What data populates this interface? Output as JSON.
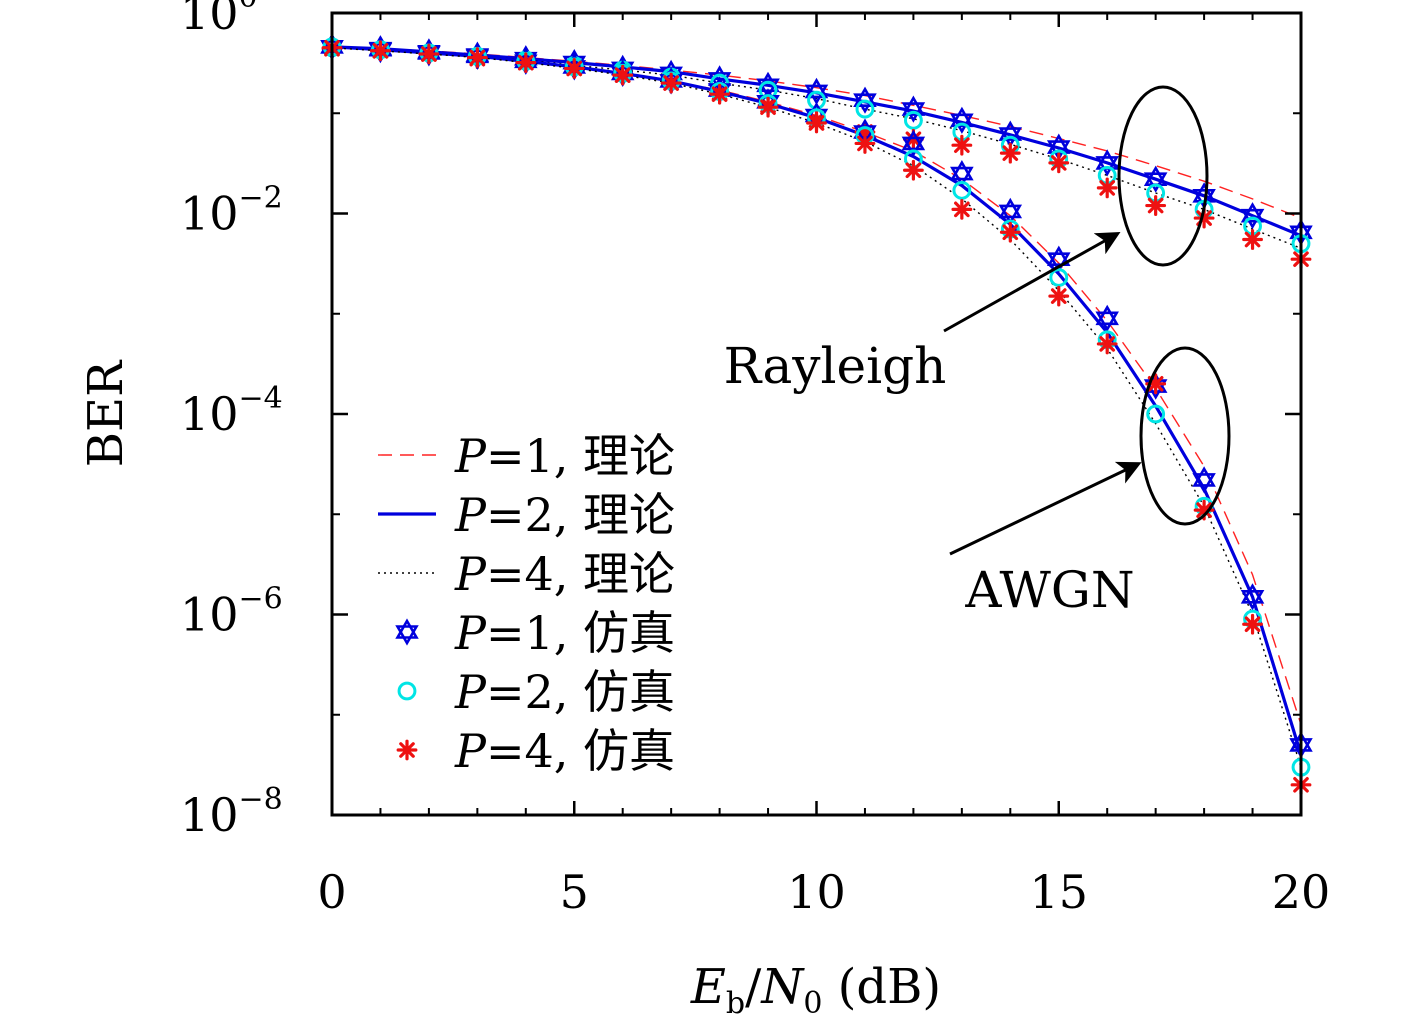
{
  "chart_data": {
    "type": "line",
    "xlabel": "E_b/N_0 (dB)",
    "ylabel": "BER",
    "xlim": [
      0,
      20
    ],
    "ylim_log10": [
      -8,
      0
    ],
    "yscale": "log",
    "grid": false,
    "legend_position": "lower-left",
    "xticks": [
      "0",
      "5",
      "10",
      "15",
      "20"
    ],
    "yticks": [
      {
        "base": "10",
        "exp": "0"
      },
      {
        "base": "10",
        "exp": "−2"
      },
      {
        "base": "10",
        "exp": "−4"
      },
      {
        "base": "10",
        "exp": "−6"
      },
      {
        "base": "10",
        "exp": "−8"
      }
    ],
    "x": [
      0,
      1,
      2,
      3,
      4,
      5,
      6,
      7,
      8,
      9,
      10,
      11,
      12,
      13,
      14,
      15,
      16,
      17,
      18,
      19,
      20
    ],
    "series": [
      {
        "name": "P=1, 理论",
        "label_italic": "P",
        "label_rest": "=1, 理论",
        "style": "dashed",
        "color": "#ff2222",
        "group": "Rayleigh",
        "y": [
          0.46,
          0.44,
          0.42,
          0.39,
          0.36,
          0.33,
          0.3,
          0.27,
          0.24,
          0.21,
          0.18,
          0.15,
          0.12,
          0.095,
          0.074,
          0.056,
          0.042,
          0.03,
          0.021,
          0.014,
          0.009
        ]
      },
      {
        "name": "P=2, 理论",
        "label_italic": "P",
        "label_rest": "=2, 理论",
        "style": "solid",
        "color": "#0000dd",
        "group": "Rayleigh",
        "y": [
          0.46,
          0.44,
          0.41,
          0.38,
          0.35,
          0.32,
          0.29,
          0.26,
          0.22,
          0.19,
          0.16,
          0.13,
          0.105,
          0.081,
          0.061,
          0.045,
          0.032,
          0.022,
          0.015,
          0.0095,
          0.006
        ]
      },
      {
        "name": "P=4, 理论",
        "label_italic": "P",
        "label_rest": "=4, 理论",
        "style": "dotted",
        "color": "#000000",
        "group": "Rayleigh",
        "y": [
          0.45,
          0.43,
          0.4,
          0.37,
          0.34,
          0.3,
          0.27,
          0.24,
          0.2,
          0.17,
          0.14,
          0.11,
          0.088,
          0.067,
          0.049,
          0.035,
          0.024,
          0.016,
          0.011,
          0.007,
          0.0045
        ]
      },
      {
        "name": "P=1, 理论",
        "style": "dashed",
        "color": "#ff2222",
        "group": "AWGN",
        "in_legend": false,
        "y": [
          0.46,
          0.43,
          0.4,
          0.37,
          0.33,
          0.29,
          0.25,
          0.21,
          0.17,
          0.13,
          0.095,
          0.065,
          0.042,
          0.022,
          0.0095,
          0.0032,
          0.00085,
          0.00018,
          3e-05,
          2.5e-06,
          8e-08
        ]
      },
      {
        "name": "P=2, 理论",
        "style": "solid",
        "color": "#0000dd",
        "group": "AWGN",
        "in_legend": false,
        "y": [
          0.46,
          0.43,
          0.4,
          0.37,
          0.33,
          0.29,
          0.25,
          0.21,
          0.165,
          0.125,
          0.09,
          0.06,
          0.037,
          0.019,
          0.0078,
          0.0025,
          0.00065,
          0.00012,
          1.8e-05,
          1.5e-06,
          4e-08
        ]
      },
      {
        "name": "P=4, 理论",
        "style": "dotted",
        "color": "#000000",
        "group": "AWGN",
        "in_legend": false,
        "y": [
          0.45,
          0.42,
          0.39,
          0.36,
          0.32,
          0.28,
          0.24,
          0.2,
          0.155,
          0.115,
          0.08,
          0.052,
          0.03,
          0.014,
          0.0055,
          0.0017,
          0.00045,
          8e-05,
          1.2e-05,
          1e-06,
          3e-08
        ]
      },
      {
        "name": "P=1, 仿真",
        "label_italic": "P",
        "label_rest": "=1, 仿真",
        "style": "marker",
        "marker": "star",
        "color": "#0000dd",
        "group": "Rayleigh",
        "y": [
          0.46,
          0.44,
          0.41,
          0.38,
          0.35,
          0.32,
          0.28,
          0.25,
          0.22,
          0.19,
          0.165,
          0.135,
          0.11,
          0.085,
          0.062,
          0.046,
          0.032,
          0.022,
          0.015,
          0.0095,
          0.0065
        ]
      },
      {
        "name": "P=2, 仿真",
        "label_italic": "P",
        "label_rest": "=2, 仿真",
        "style": "marker",
        "marker": "circle",
        "color": "#00e5e5",
        "group": "Rayleigh",
        "y": [
          0.45,
          0.43,
          0.4,
          0.37,
          0.34,
          0.3,
          0.27,
          0.23,
          0.2,
          0.17,
          0.135,
          0.11,
          0.085,
          0.065,
          0.048,
          0.035,
          0.024,
          0.016,
          0.011,
          0.0075,
          0.005
        ]
      },
      {
        "name": "P=4, 仿真",
        "label_italic": "P",
        "label_rest": "=4, 仿真",
        "style": "marker",
        "marker": "asterisk",
        "color": "#ee1111",
        "group": "Rayleigh",
        "y": [
          0.44,
          0.42,
          0.39,
          0.35,
          0.32,
          0.28,
          0.24,
          0.2,
          0.16,
          0.12,
          0.085,
          0.065,
          0.055,
          0.048,
          0.04,
          0.032,
          0.018,
          0.012,
          0.009,
          0.0055,
          0.0035
        ]
      },
      {
        "name": "P=1, 仿真",
        "style": "marker",
        "marker": "star",
        "color": "#0000dd",
        "group": "AWGN",
        "in_legend": false,
        "y": [
          0.46,
          0.43,
          0.4,
          0.37,
          0.33,
          0.29,
          0.25,
          0.21,
          0.17,
          0.13,
          0.095,
          0.065,
          0.05,
          0.025,
          0.0105,
          0.0035,
          0.0009,
          0.00019,
          2.2e-05,
          1.5e-06,
          5e-08
        ]
      },
      {
        "name": "P=2, 仿真",
        "style": "marker",
        "marker": "circle",
        "color": "#00e5e5",
        "group": "AWGN",
        "in_legend": false,
        "y": [
          0.46,
          0.43,
          0.4,
          0.37,
          0.33,
          0.29,
          0.25,
          0.21,
          0.165,
          0.125,
          0.09,
          0.06,
          0.035,
          0.017,
          0.007,
          0.0023,
          0.00055,
          0.0001,
          1.2e-05,
          9e-07,
          3e-08
        ]
      },
      {
        "name": "P=4, 仿真",
        "style": "marker",
        "marker": "asterisk",
        "color": "#ee1111",
        "group": "AWGN",
        "in_legend": false,
        "y": [
          0.45,
          0.42,
          0.39,
          0.36,
          0.32,
          0.28,
          0.24,
          0.2,
          0.155,
          0.115,
          0.08,
          0.05,
          0.027,
          0.011,
          0.0065,
          0.0015,
          0.0005,
          0.0002,
          1.1e-05,
          8e-07,
          2e-08
        ]
      }
    ],
    "annotations": [
      {
        "text": "Rayleigh",
        "target_x_db": 17.6,
        "target_y": 0.022
      },
      {
        "text": "AWGN",
        "target_x_db": 17.6,
        "target_y": 8e-05
      }
    ]
  }
}
